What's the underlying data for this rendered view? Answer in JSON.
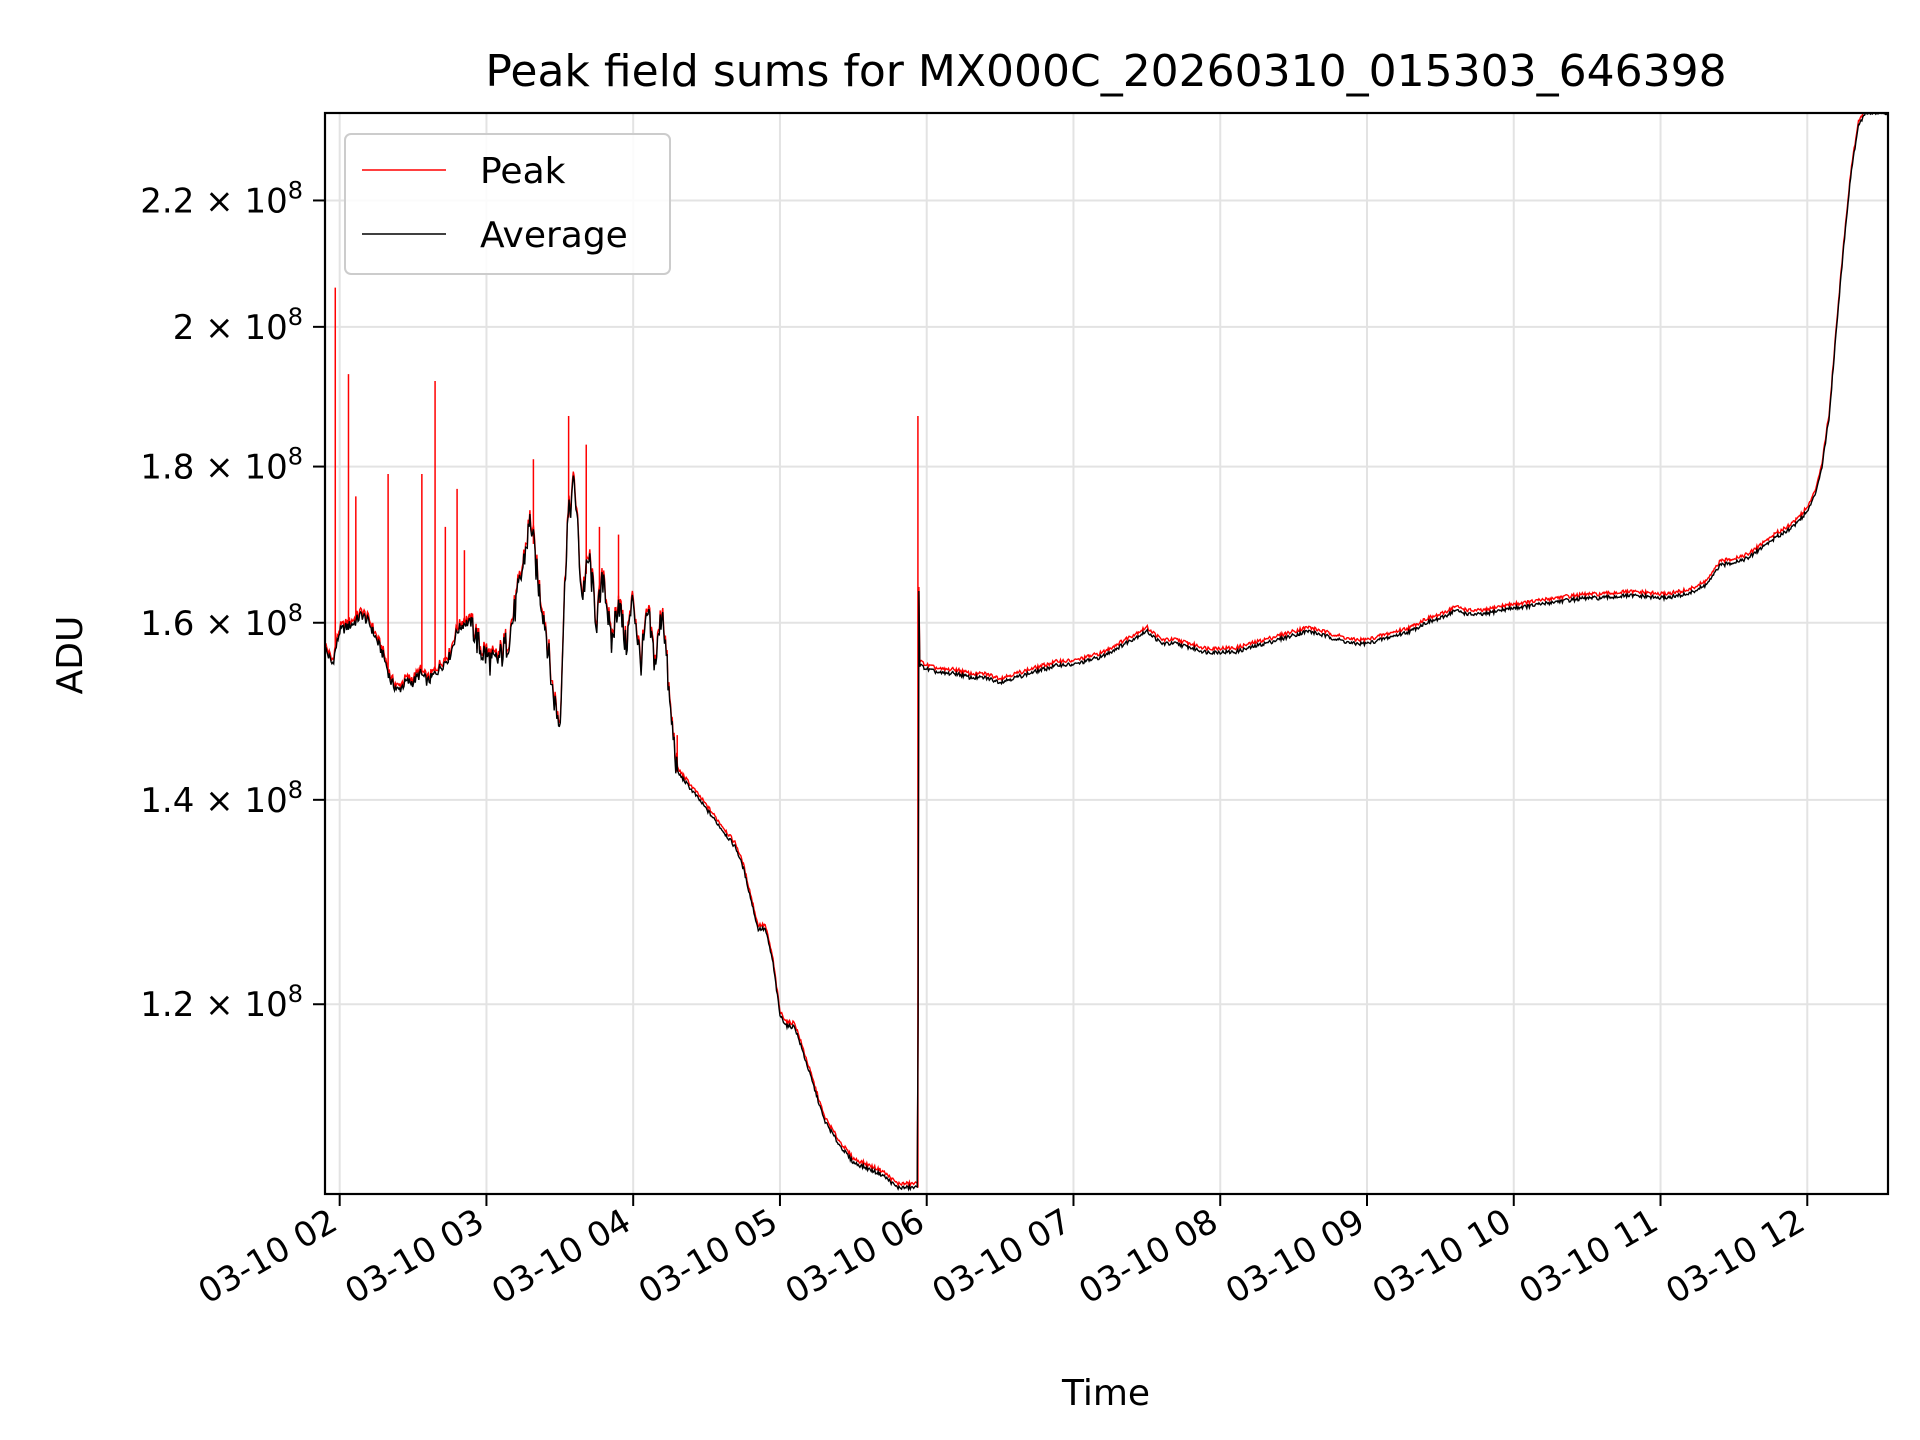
{
  "chart_data": {
    "type": "line",
    "title": "Peak field sums for MX000C_20260310_015303_646398",
    "xlabel": "Time",
    "ylabel": "ADU",
    "yscale": "log",
    "xlim": [
      1.9,
      12.55
    ],
    "ylim": [
      104000000,
      235000000
    ],
    "grid": true,
    "legend_position": "top-left",
    "x_unit": "hours on 2026-03-10",
    "x_ticks": [
      2,
      3,
      4,
      5,
      6,
      7,
      8,
      9,
      10,
      11,
      12
    ],
    "x_tick_labels": [
      "03-10 02",
      "03-10 03",
      "03-10 04",
      "03-10 05",
      "03-10 06",
      "03-10 07",
      "03-10 08",
      "03-10 09",
      "03-10 10",
      "03-10 11",
      "03-10 12"
    ],
    "y_ticks": [
      120000000,
      140000000,
      160000000,
      180000000,
      200000000,
      220000000
    ],
    "y_tick_labels": [
      {
        "mantissa": "1.2",
        "exp": "8"
      },
      {
        "mantissa": "1.4",
        "exp": "8"
      },
      {
        "mantissa": "1.6",
        "exp": "8"
      },
      {
        "mantissa": "1.8",
        "exp": "8"
      },
      {
        "mantissa": "2",
        "exp": "8"
      },
      {
        "mantissa": "2.2",
        "exp": "8"
      }
    ],
    "y_tick_base": "10",
    "series": [
      {
        "name": "Peak",
        "color": "#ff0000",
        "spikes": [
          {
            "x": 1.97,
            "y": 206000000
          },
          {
            "x": 2.06,
            "y": 193000000
          },
          {
            "x": 2.11,
            "y": 176000000
          },
          {
            "x": 2.33,
            "y": 179000000
          },
          {
            "x": 2.56,
            "y": 179000000
          },
          {
            "x": 2.65,
            "y": 192000000
          },
          {
            "x": 2.72,
            "y": 172000000
          },
          {
            "x": 2.8,
            "y": 177000000
          },
          {
            "x": 2.85,
            "y": 169000000
          },
          {
            "x": 3.32,
            "y": 181000000
          },
          {
            "x": 3.56,
            "y": 187000000
          },
          {
            "x": 3.68,
            "y": 183000000
          },
          {
            "x": 3.77,
            "y": 172000000
          },
          {
            "x": 3.9,
            "y": 171000000
          },
          {
            "x": 4.3,
            "y": 147000000
          },
          {
            "x": 5.94,
            "y": 187000000
          }
        ]
      },
      {
        "name": "Average",
        "color": "#000000",
        "x": [
          1.9,
          1.95,
          2.0,
          2.1,
          2.15,
          2.2,
          2.25,
          2.3,
          2.35,
          2.4,
          2.45,
          2.5,
          2.55,
          2.6,
          2.65,
          2.7,
          2.75,
          2.8,
          2.85,
          2.9,
          2.95,
          3.0,
          3.05,
          3.1,
          3.15,
          3.2,
          3.25,
          3.3,
          3.35,
          3.4,
          3.45,
          3.5,
          3.55,
          3.6,
          3.65,
          3.7,
          3.75,
          3.8,
          3.85,
          3.9,
          3.95,
          4.0,
          4.05,
          4.1,
          4.15,
          4.2,
          4.25,
          4.3,
          4.35,
          4.4,
          4.5,
          4.6,
          4.7,
          4.75,
          4.8,
          4.85,
          4.9,
          4.95,
          5.0,
          5.05,
          5.1,
          5.15,
          5.2,
          5.3,
          5.4,
          5.5,
          5.6,
          5.7,
          5.8,
          5.88,
          5.94,
          5.945,
          5.95,
          6.0,
          6.1,
          6.2,
          6.3,
          6.4,
          6.5,
          6.6,
          6.7,
          6.8,
          6.9,
          7.0,
          7.1,
          7.2,
          7.3,
          7.4,
          7.5,
          7.6,
          7.7,
          7.8,
          7.9,
          8.0,
          8.1,
          8.2,
          8.3,
          8.4,
          8.5,
          8.6,
          8.7,
          8.8,
          8.9,
          9.0,
          9.1,
          9.2,
          9.3,
          9.4,
          9.5,
          9.6,
          9.7,
          9.8,
          9.9,
          10.0,
          10.1,
          10.2,
          10.3,
          10.4,
          10.5,
          10.6,
          10.7,
          10.8,
          10.9,
          11.0,
          11.1,
          11.2,
          11.3,
          11.35,
          11.4,
          11.5,
          11.6,
          11.7,
          11.8,
          11.9,
          12.0,
          12.05,
          12.1,
          12.15,
          12.2,
          12.25,
          12.3,
          12.35,
          12.4,
          12.45,
          12.5,
          12.55
        ],
        "y": [
          157000000,
          155000000,
          159000000,
          160000000,
          161000000,
          160000000,
          158000000,
          156000000,
          153000000,
          152000000,
          153000000,
          153000000,
          154000000,
          153000000,
          154000000,
          155000000,
          156000000,
          159000000,
          160000000,
          160000000,
          157000000,
          156000000,
          155000000,
          156000000,
          158000000,
          162000000,
          167000000,
          173000000,
          165000000,
          160000000,
          152000000,
          148000000,
          172000000,
          178000000,
          163000000,
          168000000,
          160000000,
          166000000,
          157000000,
          163000000,
          157000000,
          163000000,
          155000000,
          161000000,
          155000000,
          162000000,
          150000000,
          143000000,
          142000000,
          141000000,
          139000000,
          137000000,
          135000000,
          133000000,
          130000000,
          127000000,
          127000000,
          124000000,
          119000000,
          118000000,
          118000000,
          116000000,
          114000000,
          110000000,
          108000000,
          106500000,
          106000000,
          105500000,
          104500000,
          104500000,
          104500000,
          170000000,
          155000000,
          154500000,
          154000000,
          154000000,
          153500000,
          153500000,
          153000000,
          153500000,
          154000000,
          154500000,
          155000000,
          155000000,
          155500000,
          156000000,
          157000000,
          158000000,
          159000000,
          157500000,
          157500000,
          157000000,
          156500000,
          156500000,
          156500000,
          157000000,
          157500000,
          158000000,
          158500000,
          159000000,
          158500000,
          158000000,
          157500000,
          157500000,
          158000000,
          158500000,
          159000000,
          160000000,
          160500000,
          161500000,
          161000000,
          161000000,
          161500000,
          161800000,
          162000000,
          162300000,
          162600000,
          162800000,
          163000000,
          163000000,
          163200000,
          163300000,
          163200000,
          163000000,
          163200000,
          163600000,
          164500000,
          165500000,
          167000000,
          167500000,
          168000000,
          169500000,
          170800000,
          172000000,
          174000000,
          176000000,
          180000000,
          187000000,
          200000000,
          213000000,
          225000000,
          233000000,
          235000000,
          235000000,
          235000000,
          235000000
        ]
      }
    ]
  }
}
